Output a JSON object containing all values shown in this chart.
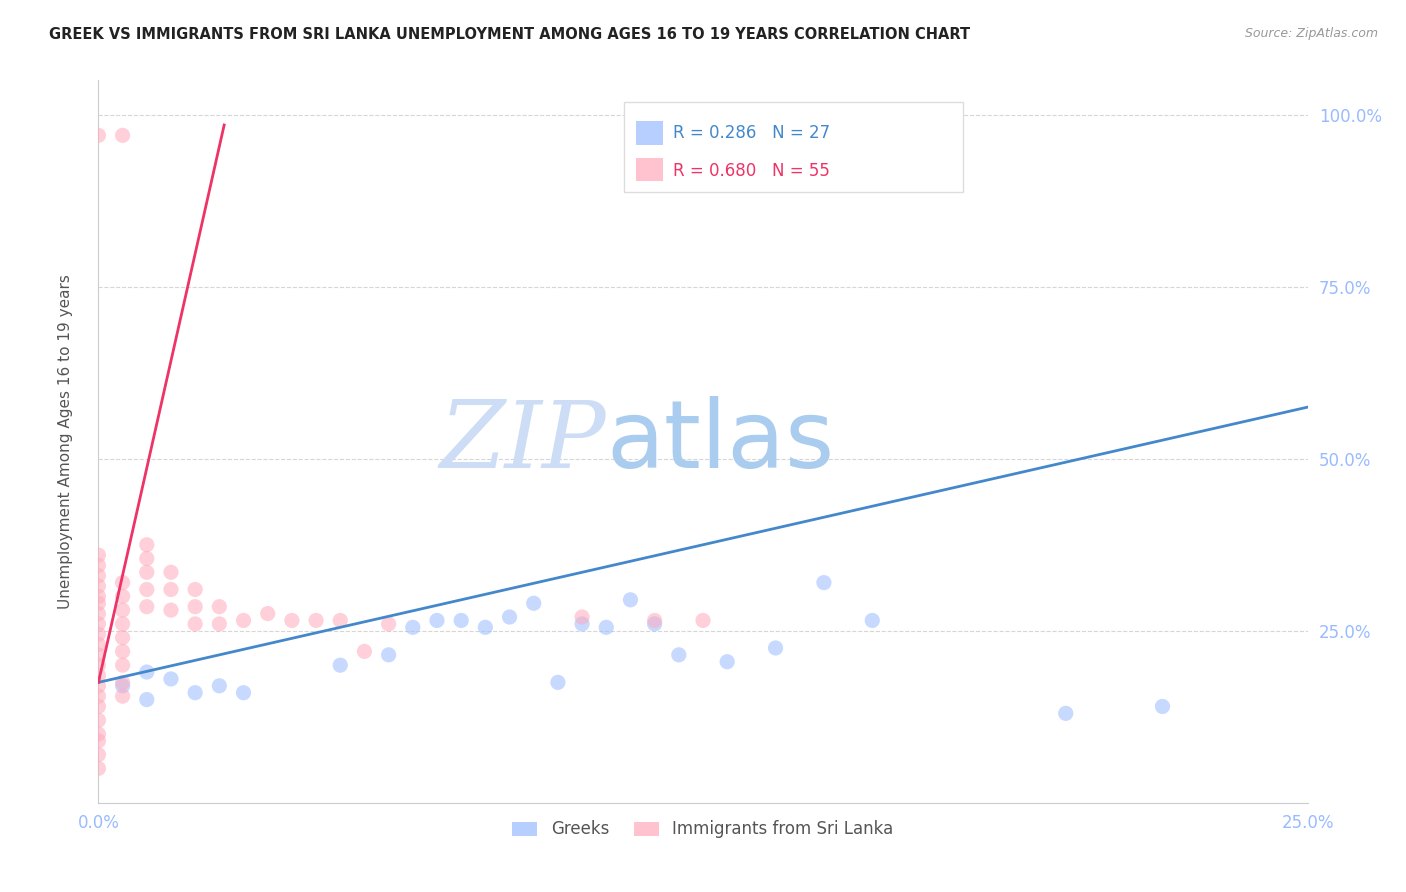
{
  "title": "GREEK VS IMMIGRANTS FROM SRI LANKA UNEMPLOYMENT AMONG AGES 16 TO 19 YEARS CORRELATION CHART",
  "source": "Source: ZipAtlas.com",
  "ylabel": "Unemployment Among Ages 16 to 19 years",
  "xlim": [
    0.0,
    0.25
  ],
  "ylim": [
    0.0,
    1.05
  ],
  "xticks": [
    0.0,
    0.05,
    0.1,
    0.15,
    0.2,
    0.25
  ],
  "yticks": [
    0.0,
    0.25,
    0.5,
    0.75,
    1.0
  ],
  "ytick_labels": [
    "",
    "25.0%",
    "50.0%",
    "75.0%",
    "100.0%"
  ],
  "xtick_labels": [
    "0.0%",
    "",
    "",
    "",
    "",
    "25.0%"
  ],
  "blue_color": "#99bbff",
  "pink_color": "#ffaabb",
  "trendline_blue": "#4488cc",
  "trendline_pink": "#ee3366",
  "legend_R_blue": "0.286",
  "legend_N_blue": "27",
  "legend_R_pink": "0.680",
  "legend_N_pink": "55",
  "watermark_zip": "ZIP",
  "watermark_atlas": "atlas",
  "greeks_x": [
    0.005,
    0.01,
    0.01,
    0.015,
    0.02,
    0.025,
    0.03,
    0.05,
    0.06,
    0.065,
    0.07,
    0.075,
    0.08,
    0.085,
    0.09,
    0.095,
    0.1,
    0.105,
    0.11,
    0.115,
    0.12,
    0.13,
    0.14,
    0.15,
    0.16,
    0.2,
    0.22
  ],
  "greeks_y": [
    0.17,
    0.15,
    0.19,
    0.18,
    0.16,
    0.17,
    0.16,
    0.2,
    0.215,
    0.255,
    0.265,
    0.265,
    0.255,
    0.27,
    0.29,
    0.175,
    0.26,
    0.255,
    0.295,
    0.26,
    0.215,
    0.205,
    0.225,
    0.32,
    0.265,
    0.13,
    0.14
  ],
  "sri_lanka_x": [
    0.0,
    0.0,
    0.0,
    0.0,
    0.0,
    0.0,
    0.0,
    0.0,
    0.0,
    0.0,
    0.0,
    0.0,
    0.0,
    0.0,
    0.0,
    0.0,
    0.0,
    0.0,
    0.0,
    0.0,
    0.0,
    0.0,
    0.005,
    0.005,
    0.005,
    0.005,
    0.005,
    0.005,
    0.005,
    0.005,
    0.005,
    0.005,
    0.01,
    0.01,
    0.01,
    0.01,
    0.01,
    0.015,
    0.015,
    0.015,
    0.02,
    0.02,
    0.02,
    0.025,
    0.025,
    0.03,
    0.035,
    0.04,
    0.045,
    0.05,
    0.055,
    0.06,
    0.1,
    0.115,
    0.125
  ],
  "sri_lanka_y": [
    0.05,
    0.07,
    0.09,
    0.1,
    0.12,
    0.14,
    0.155,
    0.17,
    0.185,
    0.2,
    0.215,
    0.23,
    0.245,
    0.26,
    0.275,
    0.29,
    0.3,
    0.315,
    0.33,
    0.345,
    0.36,
    0.97,
    0.155,
    0.175,
    0.2,
    0.22,
    0.24,
    0.26,
    0.28,
    0.3,
    0.32,
    0.97,
    0.285,
    0.31,
    0.335,
    0.355,
    0.375,
    0.28,
    0.31,
    0.335,
    0.26,
    0.285,
    0.31,
    0.26,
    0.285,
    0.265,
    0.275,
    0.265,
    0.265,
    0.265,
    0.22,
    0.26,
    0.27,
    0.265,
    0.265
  ],
  "blue_trend_x": [
    0.0,
    0.25
  ],
  "blue_trend_y": [
    0.175,
    0.575
  ],
  "pink_trend_x": [
    0.0,
    0.026
  ],
  "pink_trend_y": [
    0.175,
    0.985
  ]
}
